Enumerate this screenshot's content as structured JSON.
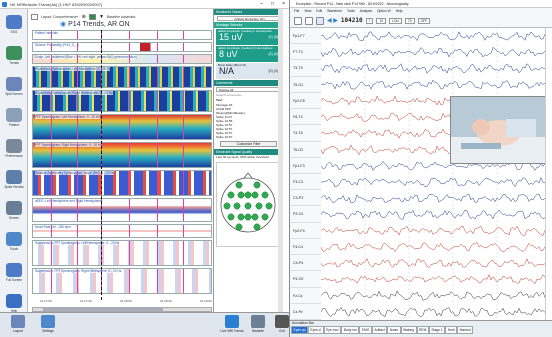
{
  "left_window": {
    "title": "NK MRBedside Frame(Ak) [1.HKF 8392090020007]",
    "layout_label": "Layout: Comprehensive+",
    "baseline_label": "Baseline automatic",
    "view_title": "P14 Trends, AR ON",
    "lanes": [
      "Patient Intervals",
      "Seizure Probability (Pr14_S_ I)",
      "Scalp: Left ipsilateral (Blue = left, red=right, yellow=Bi(I) greenorrelation)",
      "Rhythmicity Spectrogram, Left Hemisphere, 0 - 25 Hz",
      "Rhythmicity Spectrogram, Right Hemisphere, 0 - 25 Hz",
      "FFT Spectrogram, Left Hemisphere, 0 - 20 Hz",
      "FFT Spectrogram, Right Hemisphere, 0 - 20 Hz",
      "Relative Asymmetry Spectrogram, Asym (Rel), 0 - 20 Hz",
      "aEEG, Left Hemisphere and Right Hemisphere",
      "Heart Rate, 40 - 180 bpm",
      "Suppression, FFT Spectrogram, Left Hemisphere, 0 - 20 Hz",
      "Suppression, FFT Spectrogram, Right Hemisphere, 0 - 20 Hz"
    ],
    "time_ticks": [
      "21:17:00",
      "21:17:30",
      "21:18:00",
      "21:18:30",
      "21:19:00"
    ],
    "sidebar": [
      {
        "label": "EEG",
        "color": "#4d7bc6"
      },
      {
        "label": "Trends",
        "color": "#3f8f5e"
      },
      {
        "label": "Split Screen",
        "color": "#6b86b8"
      },
      {
        "label": "Patient",
        "color": "#8aa0b8"
      },
      {
        "label": "Preferences",
        "color": "#7a8899"
      },
      {
        "label": "Spike Review",
        "color": "#5d7fa8"
      },
      {
        "label": "Screen",
        "color": "#6a7f95"
      },
      {
        "label": "Touch",
        "color": "#4f88c8"
      },
      {
        "label": "Full Screen",
        "color": "#4d7bc6"
      },
      {
        "label": "Help",
        "color": "#3a6fc2"
      }
    ],
    "bottombar": [
      "Layout",
      "Settings",
      "Live MRI Trends",
      "Bedside",
      "Exit"
    ]
  },
  "panel": {
    "header": "Monitored Values",
    "artifact_label": "Artifact Reduction ON",
    "sub_header": "Montage Selector",
    "tiles": [
      {
        "header": "aEEG Amplitude (median) L Hemisphere",
        "value": "15 uV",
        "side": "(0) (0)"
      },
      {
        "header": "aEEG Amplitude (median) R Hemisphere",
        "value": "8 uV",
        "side": "(0) (0)"
      },
      {
        "header": "Burst Ratio (Burst %)",
        "value": "N/A",
        "side": "(0) (0)"
      }
    ],
    "comments_header": "Comments",
    "comment_filter": "Display All",
    "comment_search": "Search comments...",
    "comment_label": "Text",
    "comments": [
      "Montage 03",
      "AI/AR OFF",
      "[Notes@MindReady]",
      "Spike 11:07",
      "Spike 10:58",
      "Spike 10:57",
      "Spike 10:57",
      "Spike 10:57",
      "Spike 10:57"
    ],
    "customize_label": "Customize Filter",
    "montage_header": "Electrode Signal Quality",
    "montage_note": "Last 30 seconds: 95% within threshold"
  },
  "right_window": {
    "title": "Exception - Record P14 - New click P14 NW - 8/19/2022 - Neurologically",
    "menu": [
      "File",
      "View",
      "Edit",
      "Waveform",
      "Tools",
      "Analysis",
      "Option W",
      "Help"
    ],
    "timestamp": "104210",
    "sensitivity": "7",
    "timebase": "10",
    "lff": "LOU",
    "hff": "70",
    "notch": "OFF",
    "channels": [
      "Fp1-F7",
      "F7-T3",
      "T3-T5",
      "T5-O1",
      "Fp2-F8",
      "F8-T4",
      "T4-T6",
      "T6-O2",
      "Fp1-F3",
      "F3-C3",
      "C3-P3",
      "P3-O1",
      "Fp2-F4",
      "F4-C4",
      "C4-P4",
      "P4-O2",
      "Fz-Cz",
      "Cz-Pz"
    ],
    "channel_colors": [
      "#1e3a8a",
      "#1e3a8a",
      "#1e3a8a",
      "#1e3a8a",
      "#c0392b",
      "#c0392b",
      "#c0392b",
      "#c0392b",
      "#1e3a8a",
      "#1e3a8a",
      "#1e3a8a",
      "#1e3a8a",
      "#c0392b",
      "#c0392b",
      "#c0392b",
      "#c0392b",
      "#333333",
      "#333333"
    ],
    "annotation_header": "Annotation Bar",
    "annotations": [
      "Eyes op",
      "Eyes cl",
      "Eye mov",
      "Body mo",
      "EMG",
      "Artifact",
      "Noise",
      "Waking",
      "REM",
      "Stage 1",
      "Hunt",
      "Marked"
    ]
  }
}
